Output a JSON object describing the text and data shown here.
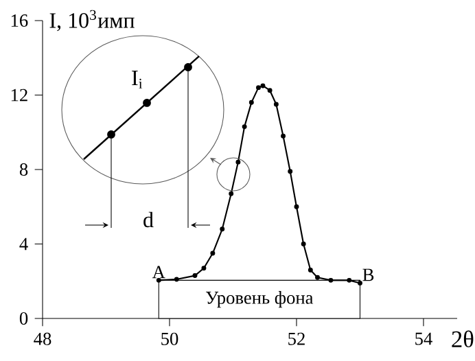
{
  "chart_data": {
    "type": "line",
    "ylabel": "I, 10$^{3}$имп",
    "xlabel": "2θ",
    "x": [
      49.83,
      50.11,
      50.4,
      50.54,
      50.68,
      50.83,
      50.97,
      51.08,
      51.18,
      51.29,
      51.4,
      51.47,
      51.58,
      51.68,
      51.79,
      51.9,
      52.0,
      52.11,
      52.22,
      52.33,
      52.54,
      52.83,
      53.0
    ],
    "series": [
      {
        "color": "#000000",
        "values": [
          2.05,
          2.1,
          2.3,
          2.7,
          3.5,
          4.8,
          6.7,
          8.4,
          10.3,
          11.6,
          12.4,
          12.5,
          12.25,
          11.5,
          9.8,
          7.9,
          6.0,
          4.0,
          2.6,
          2.2,
          2.05,
          2.05,
          1.9
        ]
      }
    ],
    "xlim": [
      48,
      54.53
    ],
    "ylim": [
      0,
      16
    ],
    "xticks": [
      48,
      50,
      52,
      54
    ],
    "yticks": [
      0,
      4,
      8,
      12,
      16
    ],
    "marker": "circle",
    "line_style": "solid",
    "grid": false,
    "bands": [
      {
        "axis": "x",
        "from": 49.83,
        "to": 53.0,
        "label": "Уровень фона",
        "color": "#ffffff"
      }
    ],
    "annotations": [
      {
        "text": "A",
        "x": 49.83,
        "y": 2.05
      },
      {
        "text": "B",
        "x": 53.0,
        "y": 1.9
      },
      "I$_{i}$",
      "d"
    ]
  }
}
